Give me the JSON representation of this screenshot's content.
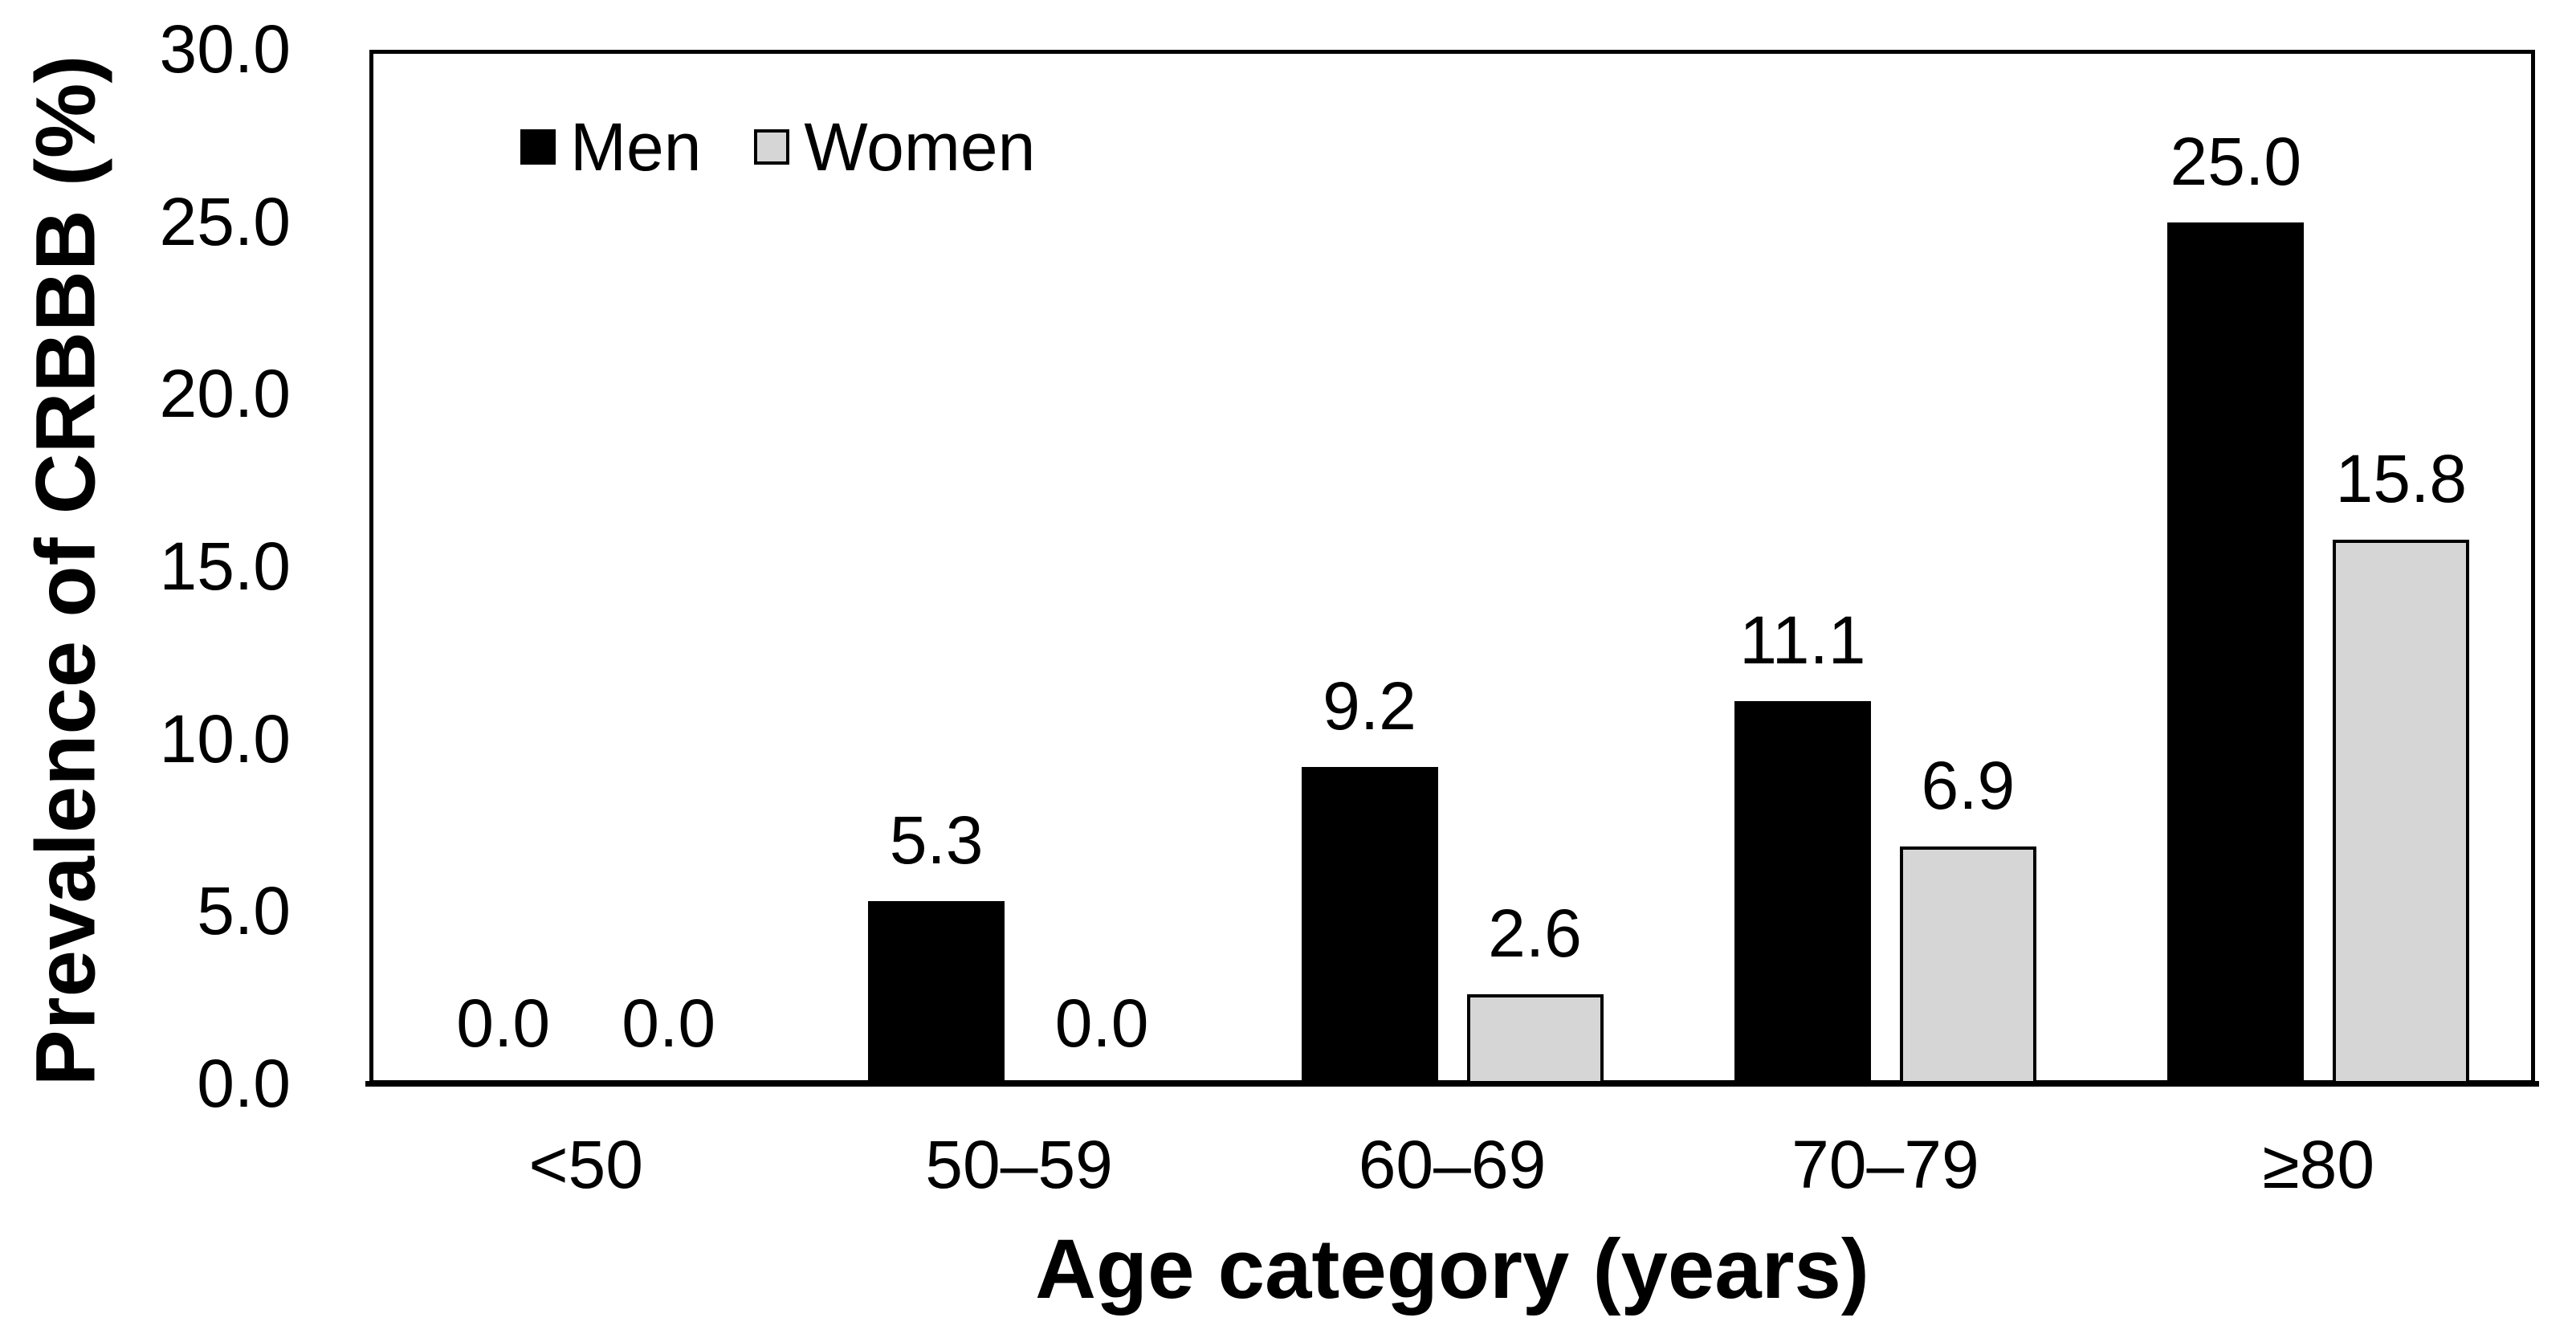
{
  "chart_data": {
    "type": "bar",
    "title": "",
    "categories": [
      "<50",
      "50–59",
      "60–69",
      "70–79",
      "≥80"
    ],
    "series": [
      {
        "name": "Men",
        "color": "#000000",
        "values": [
          0.0,
          5.3,
          9.2,
          11.1,
          25.0
        ]
      },
      {
        "name": "Women",
        "color": "#d6d6d6",
        "values": [
          0.0,
          0.0,
          2.6,
          6.9,
          15.8
        ]
      }
    ],
    "xlabel": "Age category (years)",
    "ylabel": "Prevalence of CRBBB (%)",
    "ylim": [
      0,
      30
    ],
    "ytick_step": 5,
    "ytick_labels": [
      "0.0",
      "5.0",
      "10.0",
      "15.0",
      "20.0",
      "25.0",
      "30.0"
    ],
    "grid": "horizontal-light",
    "gridline_color": "#e1e5ee",
    "legend_position": "top-left-inside",
    "value_labels": true,
    "value_label_format": "one-decimal",
    "bar_border_color_women": "#000000",
    "axis_color": "#000000"
  }
}
